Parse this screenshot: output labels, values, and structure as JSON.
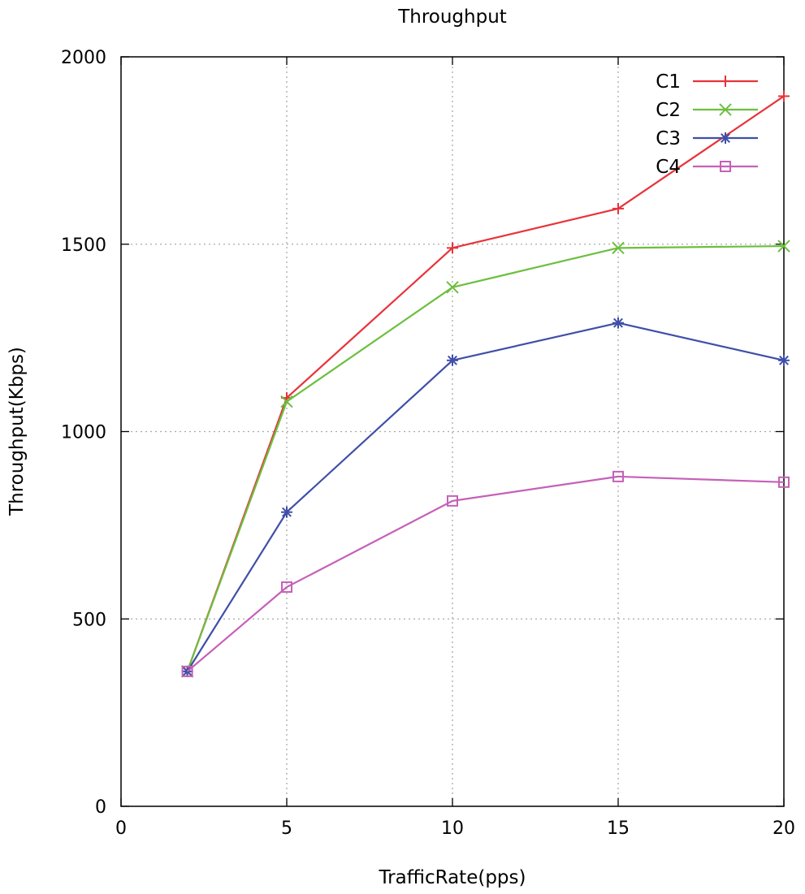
{
  "chart_data": {
    "type": "line",
    "title": "Throughput",
    "xlabel": "TrafficRate(pps)",
    "ylabel": "Throughput(Kbps)",
    "xlim": [
      0,
      20
    ],
    "ylim": [
      0,
      2000
    ],
    "xticks": [
      0,
      5,
      10,
      15,
      20
    ],
    "yticks": [
      0,
      500,
      1000,
      1500,
      2000
    ],
    "grid": true,
    "legend_position": "top-right",
    "x": [
      2,
      5,
      10,
      15,
      20
    ],
    "series": [
      {
        "name": "C1",
        "color": "#e8333a",
        "marker": "plus",
        "values": [
          360,
          1090,
          1490,
          1595,
          1895
        ]
      },
      {
        "name": "C2",
        "color": "#6cbf3f",
        "marker": "cross",
        "values": [
          360,
          1080,
          1385,
          1490,
          1495
        ]
      },
      {
        "name": "C3",
        "color": "#3f4fa8",
        "marker": "asterisk",
        "values": [
          360,
          785,
          1190,
          1290,
          1190
        ]
      },
      {
        "name": "C4",
        "color": "#c561b8",
        "marker": "square",
        "values": [
          360,
          585,
          815,
          880,
          865
        ]
      }
    ]
  }
}
